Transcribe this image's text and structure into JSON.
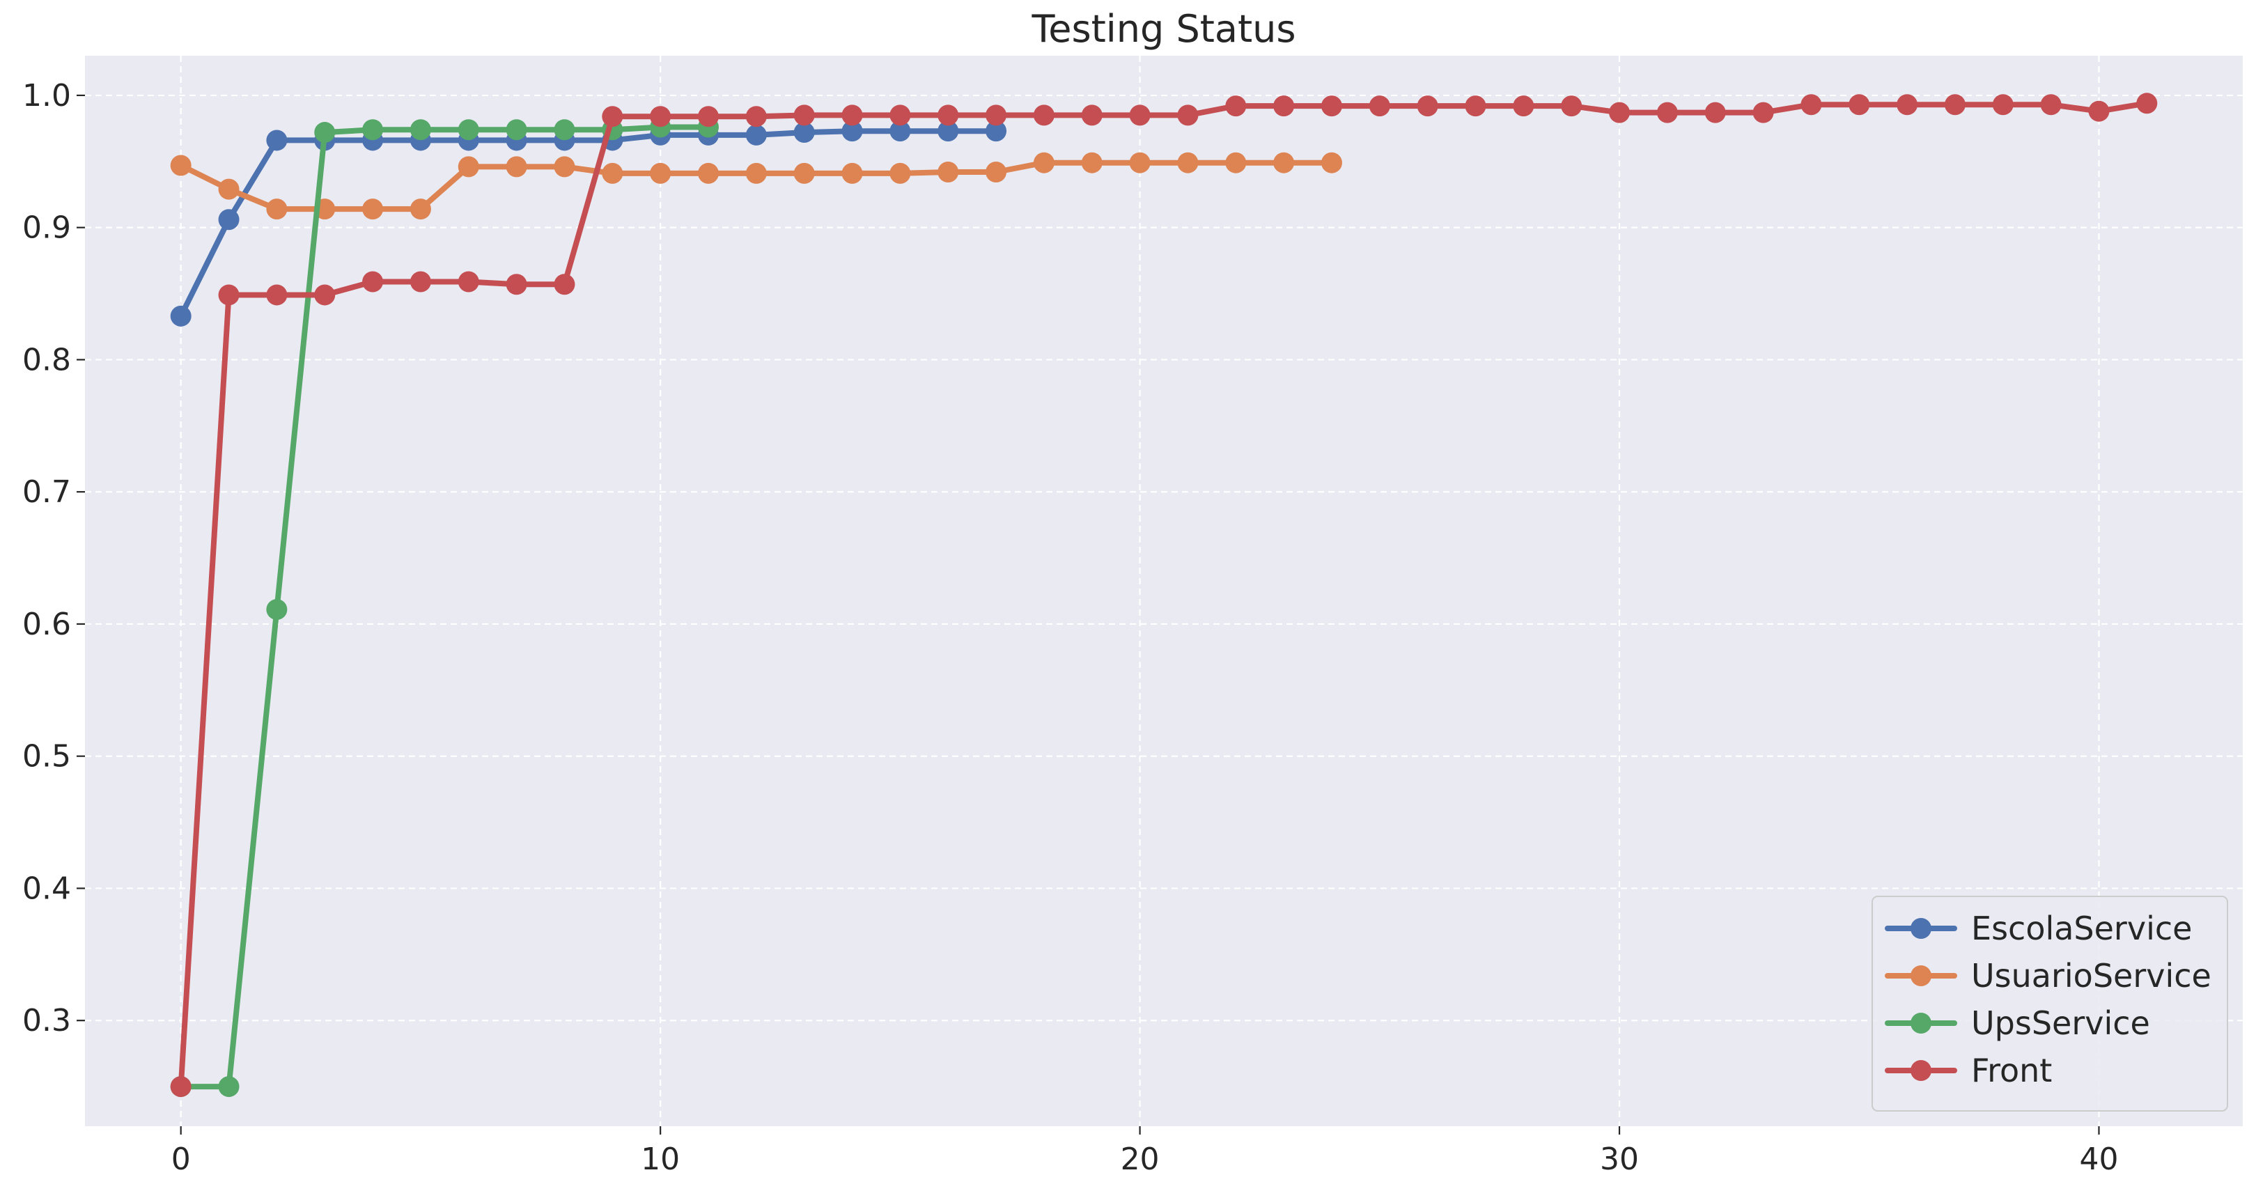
{
  "chart_data": {
    "type": "line",
    "title": "Testing Status",
    "xlabel": "",
    "ylabel": "",
    "xlim": [
      -2,
      43
    ],
    "ylim": [
      0.22,
      1.03
    ],
    "xticks": [
      0,
      10,
      20,
      30,
      40
    ],
    "yticks": [
      0.3,
      0.4,
      0.5,
      0.6,
      0.7,
      0.8,
      0.9,
      1.0
    ],
    "grid": true,
    "legend_position": "bottom-right",
    "series": [
      {
        "name": "EscolaService",
        "color": "#4c72b0",
        "x": [
          0,
          1,
          2,
          3,
          4,
          5,
          6,
          7,
          8,
          9,
          10,
          11,
          12,
          13,
          14,
          15,
          16,
          17
        ],
        "y": [
          0.833,
          0.906,
          0.966,
          0.966,
          0.966,
          0.966,
          0.966,
          0.966,
          0.966,
          0.966,
          0.97,
          0.97,
          0.97,
          0.972,
          0.973,
          0.973,
          0.973,
          0.973
        ]
      },
      {
        "name": "UsuarioService",
        "color": "#dd8452",
        "x": [
          0,
          1,
          2,
          3,
          4,
          5,
          6,
          7,
          8,
          9,
          10,
          11,
          12,
          13,
          14,
          15,
          16,
          17,
          18,
          19,
          20,
          21,
          22,
          23,
          24
        ],
        "y": [
          0.947,
          0.929,
          0.914,
          0.914,
          0.914,
          0.914,
          0.946,
          0.946,
          0.946,
          0.941,
          0.941,
          0.941,
          0.941,
          0.941,
          0.941,
          0.941,
          0.942,
          0.942,
          0.949,
          0.949,
          0.949,
          0.949,
          0.949,
          0.949,
          0.949
        ]
      },
      {
        "name": "UpsService",
        "color": "#55a868",
        "x": [
          0,
          1,
          2,
          3,
          4,
          5,
          6,
          7,
          8,
          9,
          10,
          11
        ],
        "y": [
          0.25,
          0.25,
          0.611,
          0.972,
          0.974,
          0.974,
          0.974,
          0.974,
          0.974,
          0.974,
          0.976,
          0.976
        ]
      },
      {
        "name": "Front",
        "color": "#c44e52",
        "x": [
          0,
          1,
          2,
          3,
          4,
          5,
          6,
          7,
          8,
          9,
          10,
          11,
          12,
          13,
          14,
          15,
          16,
          17,
          18,
          19,
          20,
          21,
          22,
          23,
          24,
          25,
          26,
          27,
          28,
          29,
          30,
          31,
          32,
          33,
          34,
          35,
          36,
          37,
          38,
          39,
          40,
          41
        ],
        "y": [
          0.25,
          0.849,
          0.849,
          0.849,
          0.859,
          0.859,
          0.859,
          0.857,
          0.857,
          0.984,
          0.984,
          0.984,
          0.984,
          0.985,
          0.985,
          0.985,
          0.985,
          0.985,
          0.985,
          0.985,
          0.985,
          0.985,
          0.992,
          0.992,
          0.992,
          0.992,
          0.992,
          0.992,
          0.992,
          0.992,
          0.987,
          0.987,
          0.987,
          0.987,
          0.993,
          0.993,
          0.993,
          0.993,
          0.993,
          0.993,
          0.988,
          0.994
        ]
      }
    ]
  }
}
